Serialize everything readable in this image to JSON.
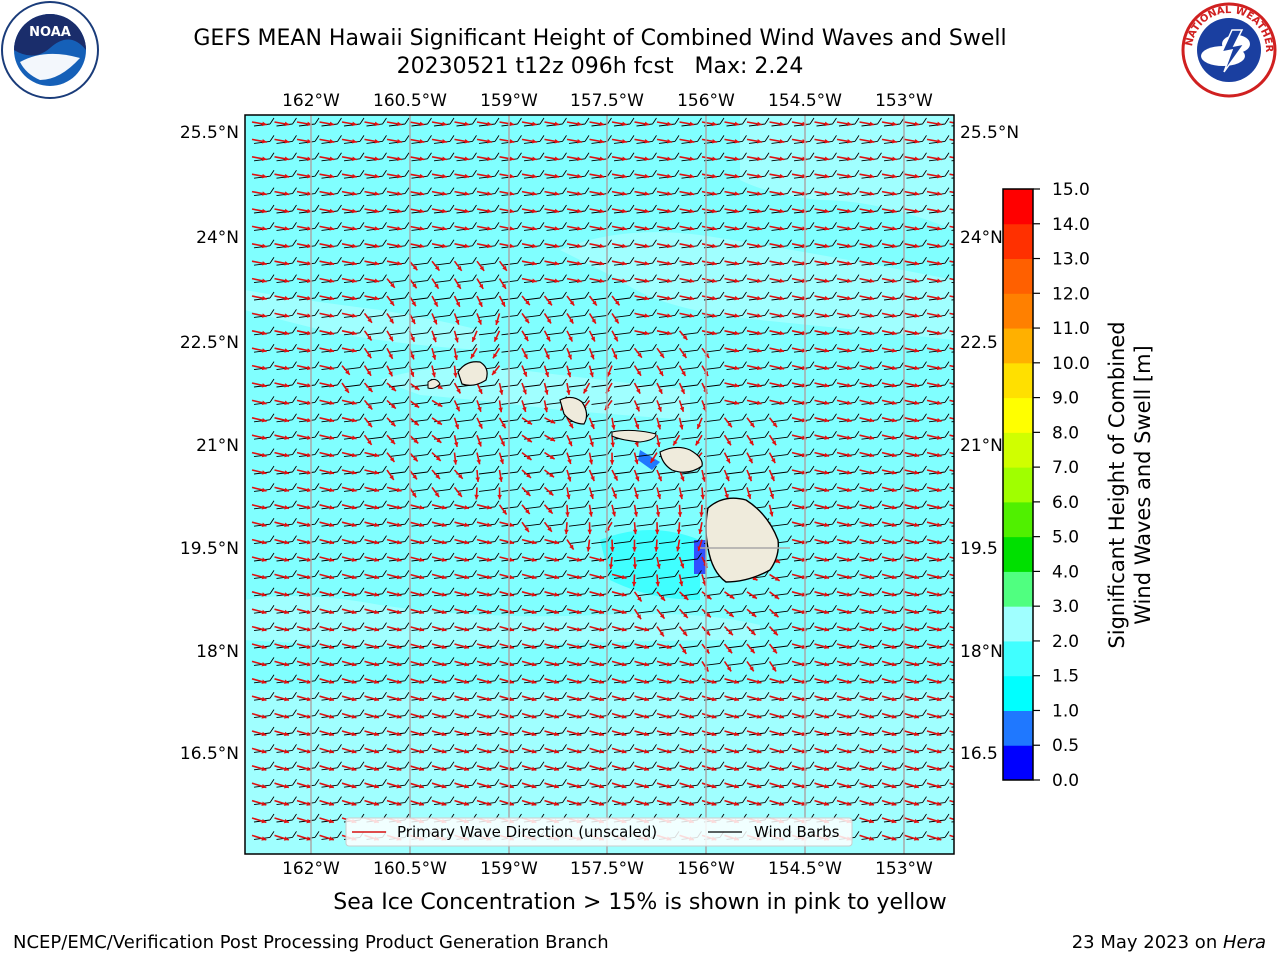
{
  "header": {
    "title": "GEFS MEAN Hawaii Significant Height of Combined Wind Waves and Swell",
    "subtitle": "20230521 t12z 096h fcst   Max: 2.24"
  },
  "logos": {
    "left": {
      "icon": "noaa-logo",
      "text": "NOAA"
    },
    "right": {
      "icon": "nws-logo",
      "text": "NATIONAL WEATHER SERVICE"
    }
  },
  "map": {
    "lon_ticks": [
      "162°W",
      "160.5°W",
      "159°W",
      "157.5°W",
      "156°W",
      "154.5°W",
      "153°W"
    ],
    "lat_ticks_left": [
      "25.5°N",
      "24°N",
      "22.5°N",
      "21°N",
      "19.5°N",
      "18°N",
      "16.5°N"
    ],
    "lat_ticks_right": [
      "25.5°N",
      "24°N",
      "22.5",
      "21°N",
      "19.5",
      "18°N",
      "16.5"
    ],
    "ocean_color": "#80ffff",
    "land_color": "#efebdc",
    "legend": {
      "wave_label": "Primary Wave Direction (unscaled)",
      "barb_label": "Wind Barbs"
    }
  },
  "colorbar": {
    "label_line1": "Significant Height of Combined",
    "label_line2": "Wind Waves and Swell [m]",
    "ticks": [
      "0.0",
      "0.5",
      "1.0",
      "1.5",
      "2.0",
      "3.0",
      "4.0",
      "5.0",
      "6.0",
      "7.0",
      "8.0",
      "9.0",
      "10.0",
      "11.0",
      "12.0",
      "13.0",
      "14.0",
      "15.0"
    ],
    "colors": [
      "#0000ff",
      "#1f78ff",
      "#00ffff",
      "#40ffff",
      "#a0ffff",
      "#50ff80",
      "#00e000",
      "#50f000",
      "#a0ff00",
      "#d0ff00",
      "#ffff00",
      "#ffe000",
      "#ffb000",
      "#ff8000",
      "#ff6000",
      "#ff3000",
      "#ff0000"
    ]
  },
  "caption": "Sea Ice Concentration > 15% is shown in pink to yellow",
  "footer": {
    "left": "NCEP/EMC/Verification Post Processing Product Generation Branch",
    "right_date": "23 May 2023 on ",
    "right_host": "Hera"
  }
}
